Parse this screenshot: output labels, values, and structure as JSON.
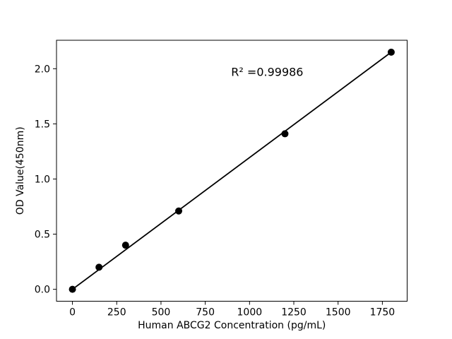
{
  "figure": {
    "background": "#ffffff"
  },
  "chart_data": {
    "type": "scatter",
    "title": "",
    "xlabel": "Human ABCG2 Concentration (pg/mL)",
    "ylabel": "OD Value(450nm)",
    "x": [
      0,
      150,
      300,
      600,
      1200,
      1800
    ],
    "y": [
      0.0,
      0.2,
      0.4,
      0.71,
      1.41,
      2.15
    ],
    "fit_line": {
      "x0": 0,
      "y0": 0.0,
      "x1": 1800,
      "y1": 2.15
    },
    "xtick_values": [
      0,
      250,
      500,
      750,
      1000,
      1250,
      1500,
      1750
    ],
    "xtick_labels": [
      "0",
      "250",
      "500",
      "750",
      "1000",
      "1250",
      "1500",
      "1750"
    ],
    "ytick_values": [
      0.0,
      0.5,
      1.0,
      1.5,
      2.0
    ],
    "ytick_labels": [
      "0.0",
      "0.5",
      "1.0",
      "1.5",
      "2.0"
    ],
    "xlim": [
      -90,
      1890
    ],
    "ylim": [
      -0.108,
      2.258
    ],
    "grid": false,
    "legend": null,
    "annotation": {
      "text": "R² =0.99986",
      "x": 1100,
      "y": 1.97
    },
    "marker_color": "#000000",
    "line_color": "#000000",
    "axis_color": "#000000",
    "background_color": "#ffffff"
  }
}
